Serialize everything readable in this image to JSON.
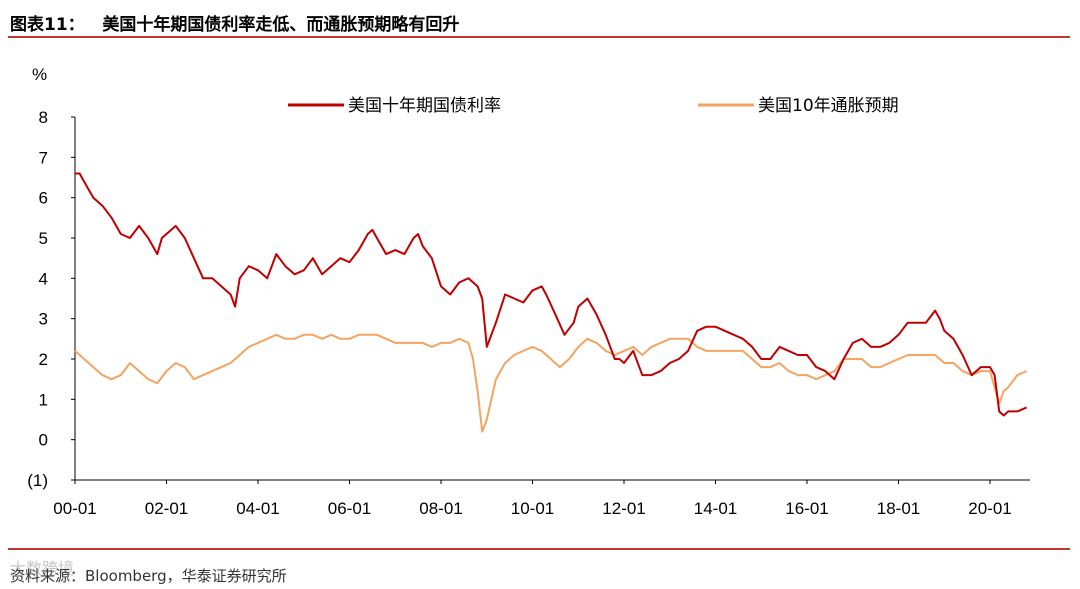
{
  "title": "图表11：   美国十年期国债利率走低、而通胀预期略有回升",
  "source": "资料来源：Bloomberg，华泰证券研究所",
  "watermark": "大数跨境",
  "colors": {
    "accent_red": "#c0392b",
    "series_red": "#c00000",
    "series_orange": "#f4a460"
  },
  "chart_data": {
    "type": "line",
    "ylabel": "%",
    "ylim": [
      -1,
      8
    ],
    "y_ticks": [
      8,
      7,
      6,
      5,
      4,
      3,
      2,
      1,
      0,
      -1
    ],
    "y_tick_labels": [
      "8",
      "7",
      "6",
      "5",
      "4",
      "3",
      "2",
      "1",
      "0",
      "(1)"
    ],
    "x_tick_labels": [
      "00-01",
      "02-01",
      "04-01",
      "06-01",
      "08-01",
      "10-01",
      "12-01",
      "14-01",
      "16-01",
      "18-01",
      "20-01"
    ],
    "x_range": [
      2000.0,
      2020.8
    ],
    "legend_position": "top",
    "series": [
      {
        "name": "美国十年期国债利率",
        "color": "#c00000",
        "x": [
          2000.0,
          2000.1,
          2000.25,
          2000.4,
          2000.6,
          2000.8,
          2001.0,
          2001.2,
          2001.4,
          2001.6,
          2001.8,
          2001.9,
          2002.0,
          2002.2,
          2002.4,
          2002.6,
          2002.8,
          2003.0,
          2003.2,
          2003.4,
          2003.5,
          2003.6,
          2003.8,
          2004.0,
          2004.2,
          2004.4,
          2004.6,
          2004.8,
          2005.0,
          2005.2,
          2005.4,
          2005.6,
          2005.8,
          2006.0,
          2006.2,
          2006.4,
          2006.5,
          2006.6,
          2006.8,
          2007.0,
          2007.2,
          2007.4,
          2007.5,
          2007.6,
          2007.8,
          2008.0,
          2008.2,
          2008.4,
          2008.6,
          2008.8,
          2008.9,
          2009.0,
          2009.2,
          2009.4,
          2009.6,
          2009.8,
          2010.0,
          2010.2,
          2010.3,
          2010.5,
          2010.7,
          2010.9,
          2011.0,
          2011.2,
          2011.4,
          2011.6,
          2011.8,
          2011.9,
          2012.0,
          2012.2,
          2012.4,
          2012.6,
          2012.8,
          2013.0,
          2013.2,
          2013.4,
          2013.6,
          2013.8,
          2014.0,
          2014.2,
          2014.4,
          2014.6,
          2014.8,
          2015.0,
          2015.2,
          2015.4,
          2015.6,
          2015.8,
          2016.0,
          2016.2,
          2016.4,
          2016.6,
          2016.8,
          2017.0,
          2017.2,
          2017.4,
          2017.6,
          2017.8,
          2018.0,
          2018.2,
          2018.4,
          2018.6,
          2018.8,
          2018.9,
          2019.0,
          2019.2,
          2019.4,
          2019.6,
          2019.8,
          2020.0,
          2020.1,
          2020.2,
          2020.3,
          2020.4,
          2020.6,
          2020.8
        ],
        "y": [
          6.6,
          6.6,
          6.3,
          6.0,
          5.8,
          5.5,
          5.1,
          5.0,
          5.3,
          5.0,
          4.6,
          5.0,
          5.1,
          5.3,
          5.0,
          4.5,
          4.0,
          4.0,
          3.8,
          3.6,
          3.3,
          4.0,
          4.3,
          4.2,
          4.0,
          4.6,
          4.3,
          4.1,
          4.2,
          4.5,
          4.1,
          4.3,
          4.5,
          4.4,
          4.7,
          5.1,
          5.2,
          5.0,
          4.6,
          4.7,
          4.6,
          5.0,
          5.1,
          4.8,
          4.5,
          3.8,
          3.6,
          3.9,
          4.0,
          3.8,
          3.5,
          2.3,
          2.9,
          3.6,
          3.5,
          3.4,
          3.7,
          3.8,
          3.6,
          3.1,
          2.6,
          2.9,
          3.3,
          3.5,
          3.1,
          2.6,
          2.0,
          2.0,
          1.9,
          2.2,
          1.6,
          1.6,
          1.7,
          1.9,
          2.0,
          2.2,
          2.7,
          2.8,
          2.8,
          2.7,
          2.6,
          2.5,
          2.3,
          2.0,
          2.0,
          2.3,
          2.2,
          2.1,
          2.1,
          1.8,
          1.7,
          1.5,
          2.0,
          2.4,
          2.5,
          2.3,
          2.3,
          2.4,
          2.6,
          2.9,
          2.9,
          2.9,
          3.2,
          3.0,
          2.7,
          2.5,
          2.1,
          1.6,
          1.8,
          1.8,
          1.6,
          0.7,
          0.6,
          0.7,
          0.7,
          0.8
        ]
      },
      {
        "name": "美国10年通胀预期",
        "color": "#f4a460",
        "x": [
          2000.0,
          2000.2,
          2000.4,
          2000.6,
          2000.8,
          2001.0,
          2001.2,
          2001.4,
          2001.6,
          2001.8,
          2002.0,
          2002.2,
          2002.4,
          2002.6,
          2002.8,
          2003.0,
          2003.2,
          2003.4,
          2003.6,
          2003.8,
          2004.0,
          2004.2,
          2004.4,
          2004.6,
          2004.8,
          2005.0,
          2005.2,
          2005.4,
          2005.6,
          2005.8,
          2006.0,
          2006.2,
          2006.4,
          2006.6,
          2006.8,
          2007.0,
          2007.2,
          2007.4,
          2007.6,
          2007.8,
          2008.0,
          2008.2,
          2008.4,
          2008.6,
          2008.7,
          2008.8,
          2008.9,
          2009.0,
          2009.2,
          2009.4,
          2009.6,
          2009.8,
          2010.0,
          2010.2,
          2010.4,
          2010.6,
          2010.8,
          2011.0,
          2011.2,
          2011.4,
          2011.6,
          2011.8,
          2012.0,
          2012.2,
          2012.4,
          2012.6,
          2012.8,
          2013.0,
          2013.2,
          2013.4,
          2013.6,
          2013.8,
          2014.0,
          2014.2,
          2014.4,
          2014.6,
          2014.8,
          2015.0,
          2015.2,
          2015.4,
          2015.6,
          2015.8,
          2016.0,
          2016.2,
          2016.4,
          2016.6,
          2016.8,
          2017.0,
          2017.2,
          2017.4,
          2017.6,
          2017.8,
          2018.0,
          2018.2,
          2018.4,
          2018.6,
          2018.8,
          2019.0,
          2019.2,
          2019.4,
          2019.6,
          2019.8,
          2020.0,
          2020.1,
          2020.2,
          2020.3,
          2020.4,
          2020.6,
          2020.8
        ],
        "y": [
          2.2,
          2.0,
          1.8,
          1.6,
          1.5,
          1.6,
          1.9,
          1.7,
          1.5,
          1.4,
          1.7,
          1.9,
          1.8,
          1.5,
          1.6,
          1.7,
          1.8,
          1.9,
          2.1,
          2.3,
          2.4,
          2.5,
          2.6,
          2.5,
          2.5,
          2.6,
          2.6,
          2.5,
          2.6,
          2.5,
          2.5,
          2.6,
          2.6,
          2.6,
          2.5,
          2.4,
          2.4,
          2.4,
          2.4,
          2.3,
          2.4,
          2.4,
          2.5,
          2.4,
          2.0,
          1.2,
          0.2,
          0.5,
          1.5,
          1.9,
          2.1,
          2.2,
          2.3,
          2.2,
          2.0,
          1.8,
          2.0,
          2.3,
          2.5,
          2.4,
          2.2,
          2.1,
          2.2,
          2.3,
          2.1,
          2.3,
          2.4,
          2.5,
          2.5,
          2.5,
          2.3,
          2.2,
          2.2,
          2.2,
          2.2,
          2.2,
          2.0,
          1.8,
          1.8,
          1.9,
          1.7,
          1.6,
          1.6,
          1.5,
          1.6,
          1.7,
          2.0,
          2.0,
          2.0,
          1.8,
          1.8,
          1.9,
          2.0,
          2.1,
          2.1,
          2.1,
          2.1,
          1.9,
          1.9,
          1.7,
          1.6,
          1.7,
          1.7,
          1.3,
          0.9,
          1.2,
          1.3,
          1.6,
          1.7
        ]
      }
    ]
  }
}
